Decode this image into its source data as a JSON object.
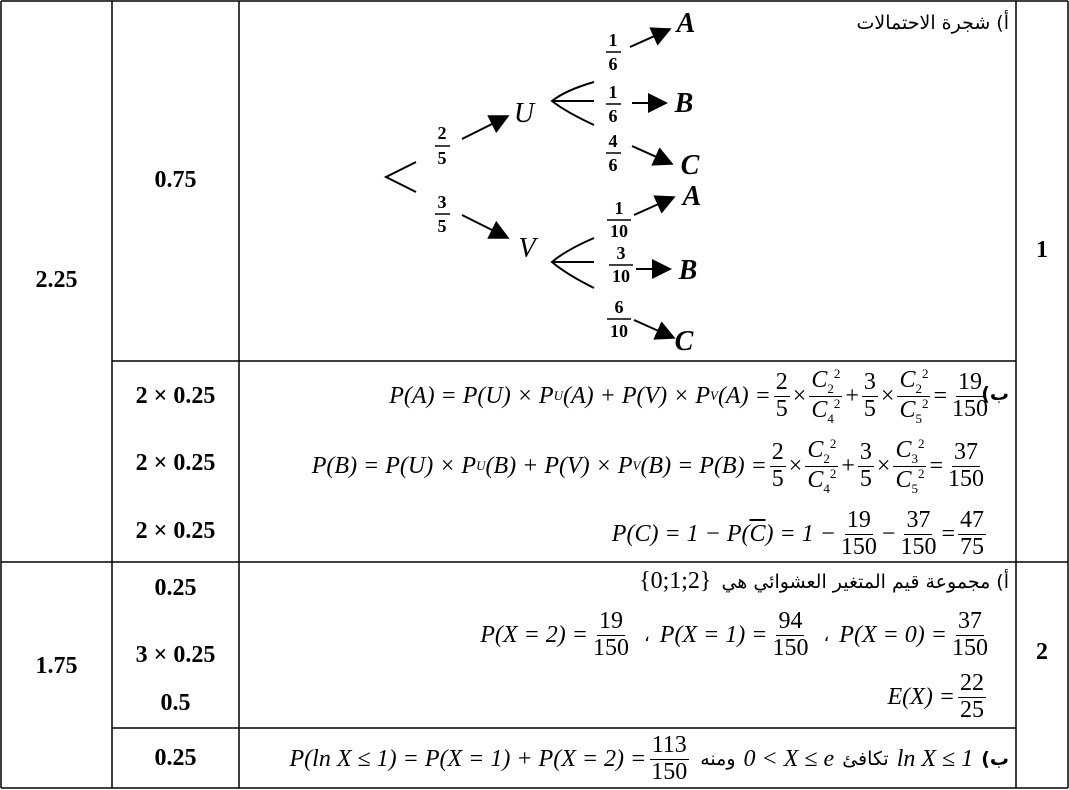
{
  "rows": [
    {
      "number": "1",
      "total": "2.25",
      "parts": [
        {
          "points": [
            "0.75"
          ],
          "label": "أ) شجرة الاحتمالات",
          "tree": {
            "first": {
              "U": {
                "prob_num": "2",
                "prob_den": "5",
                "node": "U"
              },
              "V": {
                "prob_num": "3",
                "prob_den": "5",
                "node": "V"
              }
            },
            "second_U": [
              {
                "num": "1",
                "den": "6",
                "outcome": "A"
              },
              {
                "num": "1",
                "den": "6",
                "outcome": "B"
              },
              {
                "num": "4",
                "den": "6",
                "outcome": "C"
              }
            ],
            "second_V": [
              {
                "num": "1",
                "den": "10",
                "outcome": "A"
              },
              {
                "num": "3",
                "den": "10",
                "outcome": "B"
              },
              {
                "num": "6",
                "den": "10",
                "outcome": "C"
              }
            ]
          }
        },
        {
          "points": [
            "2 × 0.25",
            "2 × 0.25",
            "2 × 0.25"
          ],
          "label": "ب)",
          "formulas": {
            "pa": {
              "lhs": "P(A) = P(U) × P",
              "sub_u": "U",
              "mid": "(A) + P(V) × P",
              "sub_v": "V",
              "end": "(A) =",
              "f1n": "2",
              "f1d": "5",
              "c1n": "C",
              "c1n_sub": "2",
              "c1n_sup": "2",
              "c1d": "C",
              "c1d_sub": "4",
              "c1d_sup": "2",
              "plus": "+",
              "f2n": "3",
              "f2d": "5",
              "c2n": "C",
              "c2n_sub": "2",
              "c2n_sup": "2",
              "c2d": "C",
              "c2d_sub": "5",
              "c2d_sup": "2",
              "eq": "=",
              "rn": "19",
              "rd": "150"
            },
            "pb": {
              "lhs": "P(B) = P(U) × P",
              "sub_u": "U",
              "mid": "(B) + P(V) × P",
              "sub_v": "V",
              "end": "(B) = P(B) =",
              "f1n": "2",
              "f1d": "5",
              "c1n": "C",
              "c1n_sub": "2",
              "c1n_sup": "2",
              "c1d": "C",
              "c1d_sub": "4",
              "c1d_sup": "2",
              "plus": "+",
              "f2n": "3",
              "f2d": "5",
              "c2n": "C",
              "c2n_sub": "3",
              "c2n_sup": "2",
              "c2d": "C",
              "c2d_sub": "5",
              "c2d_sup": "2",
              "eq": "=",
              "rn": "37",
              "rd": "150"
            },
            "pc": {
              "lhs": "P(C) = 1 − P(",
              "cbar": "C",
              "mid": ") = 1 −",
              "f1n": "19",
              "f1d": "150",
              "minus": "−",
              "f2n": "37",
              "f2d": "150",
              "eq": "=",
              "rn": "47",
              "rd": "75"
            }
          }
        }
      ]
    },
    {
      "number": "2",
      "total": "1.75",
      "parts": [
        {
          "points": [
            "0.25",
            "3 × 0.25",
            "0.5"
          ],
          "label": "أ) مجموعة قيم المتغير العشوائي هي",
          "set": "{0;1;2}",
          "probs": {
            "p2": "P(X = 2) =",
            "p2n": "19",
            "p2d": "150",
            "sep1": "،",
            "p1": "P(X = 1) =",
            "p1n": "94",
            "p1d": "150",
            "sep2": "،",
            "p0": "P(X = 0) =",
            "p0n": "37",
            "p0d": "150"
          },
          "expectation": {
            "lhs": "E(X) =",
            "n": "22",
            "d": "25"
          }
        },
        {
          "points": [
            "0.25"
          ],
          "label": "ب)",
          "ln_condition": "ln X ≤ 1",
          "equiv_word": "تكافئ",
          "interval": "0 < X ≤ e",
          "hence_word": "ومنه",
          "formula": "P(ln X ≤ 1) = P(X = 1) + P(X = 2) =",
          "rn": "113",
          "rd": "150"
        }
      ]
    }
  ]
}
